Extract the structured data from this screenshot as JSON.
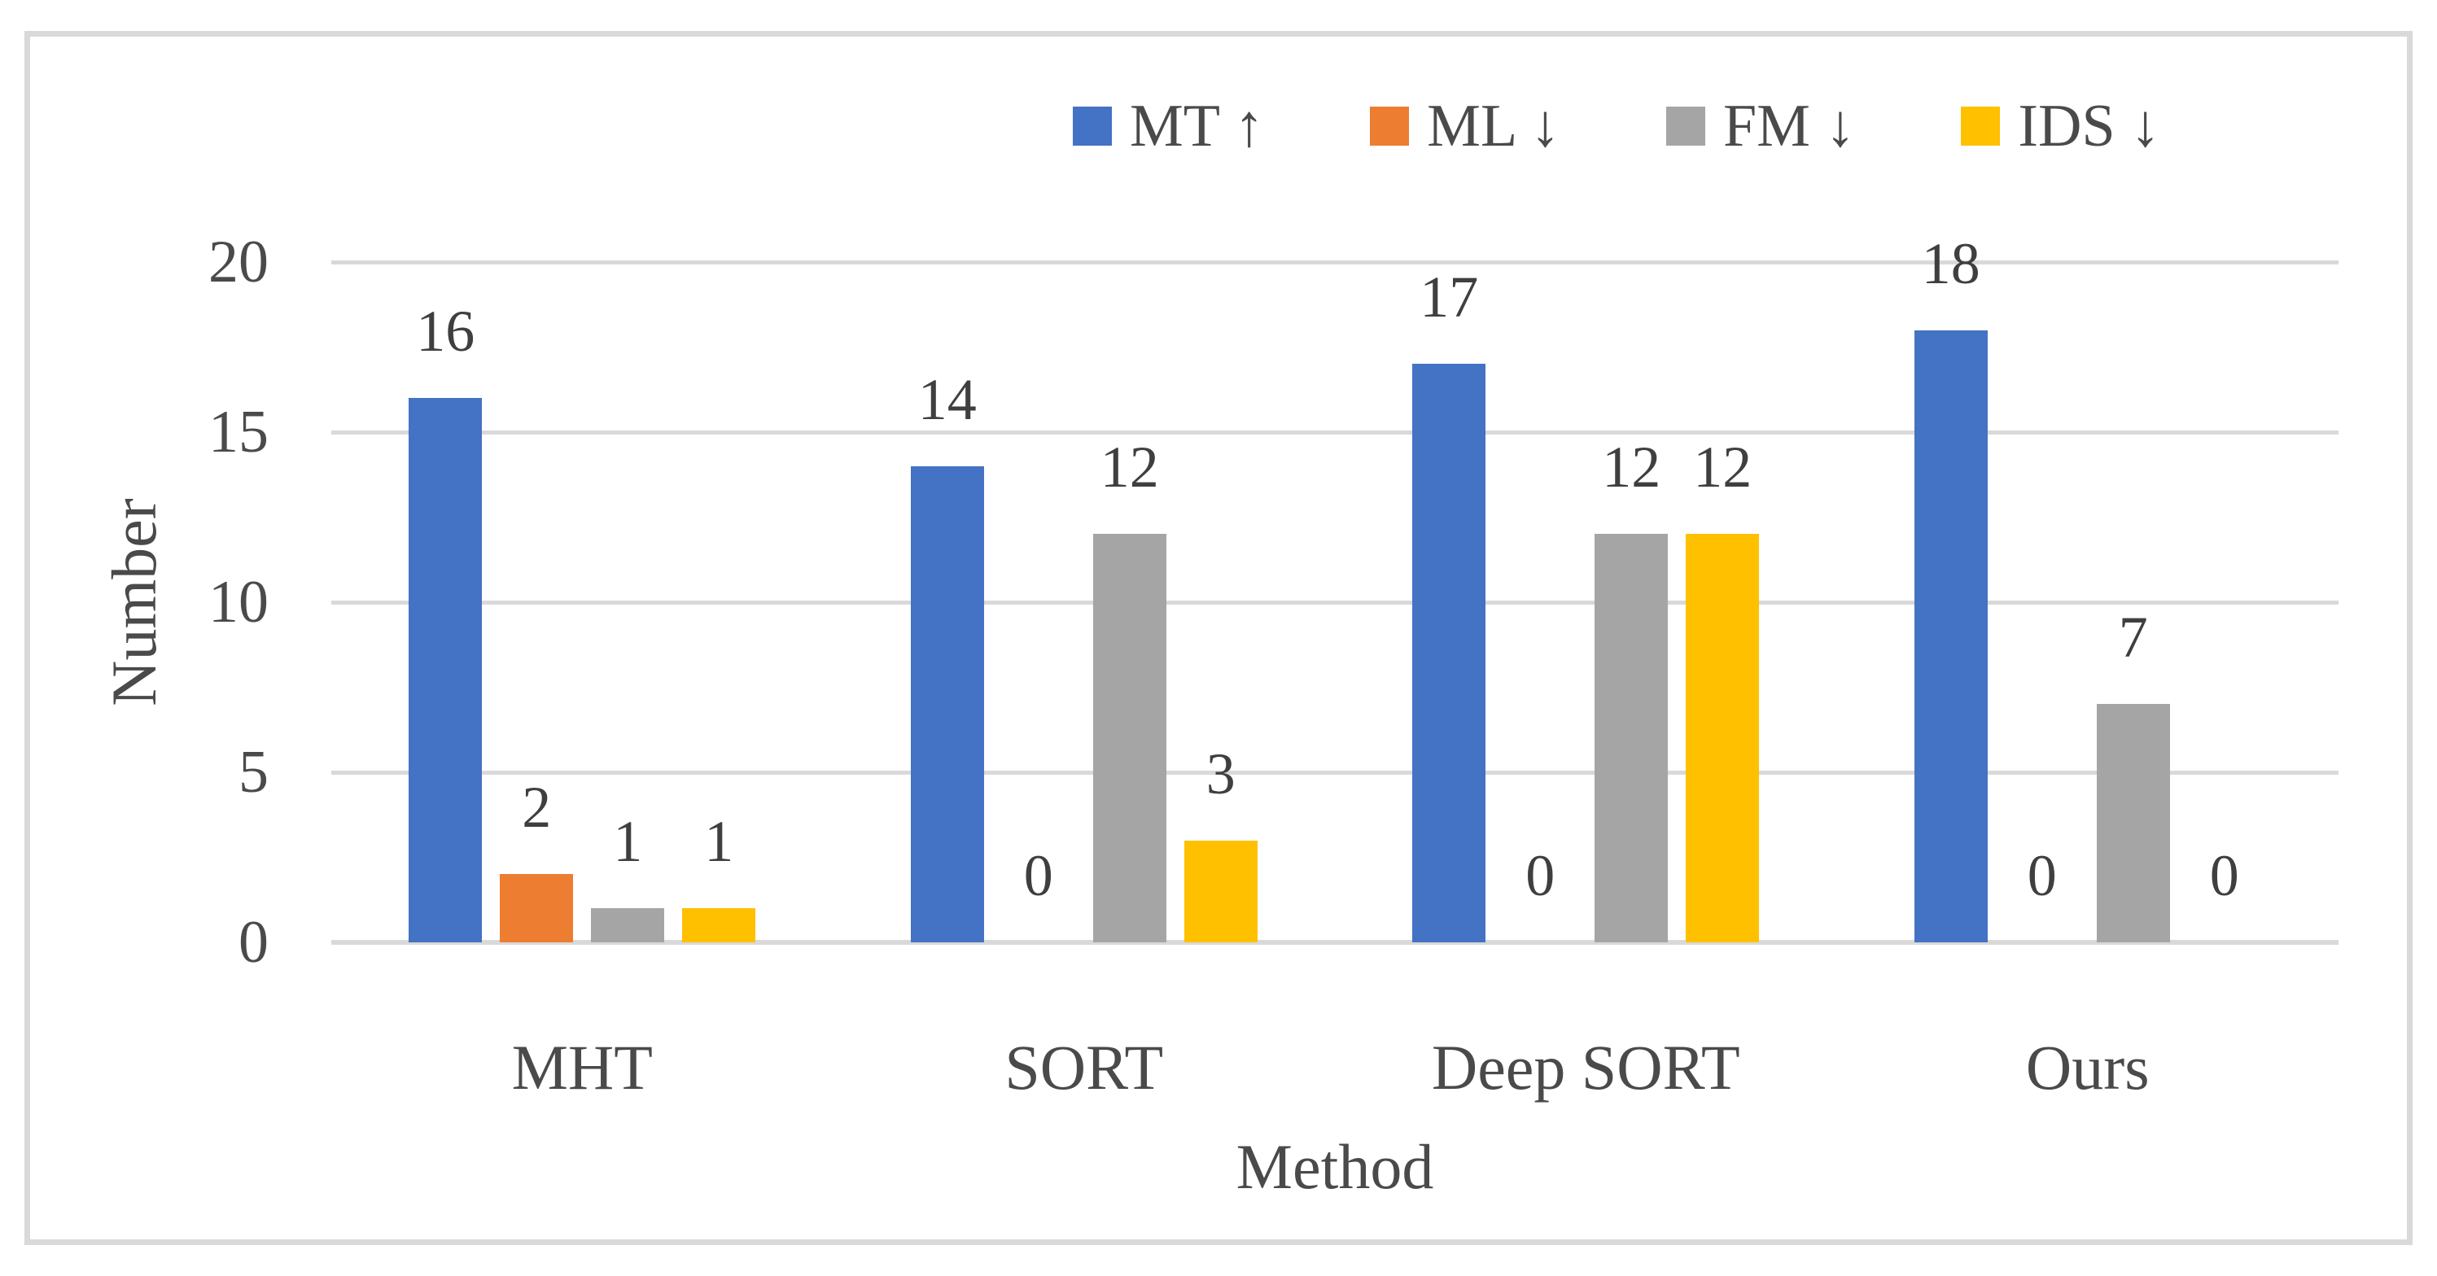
{
  "chart_data": {
    "type": "bar",
    "title": "",
    "categories": [
      "MHT",
      "SORT",
      "Deep SORT",
      "Ours"
    ],
    "series": [
      {
        "name": "MT ↑",
        "color": "#4472C4",
        "values": [
          16,
          14,
          17,
          18
        ]
      },
      {
        "name": "ML ↓",
        "color": "#ED7D31",
        "values": [
          2,
          0,
          0,
          0
        ]
      },
      {
        "name": "FM ↓",
        "color": "#A5A5A5",
        "values": [
          1,
          12,
          12,
          7
        ]
      },
      {
        "name": "IDS ↓",
        "color": "#FFC000",
        "values": [
          1,
          3,
          12,
          0
        ]
      }
    ],
    "xlabel": "Method",
    "ylabel": "Number",
    "ylim": [
      0,
      20
    ],
    "yticks": [
      0,
      5,
      10,
      15,
      20
    ],
    "grid": true,
    "legend_position": "top-center",
    "data_labels": true
  },
  "colors": {
    "gridline": "#D9D9D9",
    "axis_line": "#D9D9D9",
    "frame_border": "#D9D9D9",
    "text": "#4A4A4A",
    "data_label_text": "#3F3F3F",
    "background": "#FFFFFF"
  }
}
